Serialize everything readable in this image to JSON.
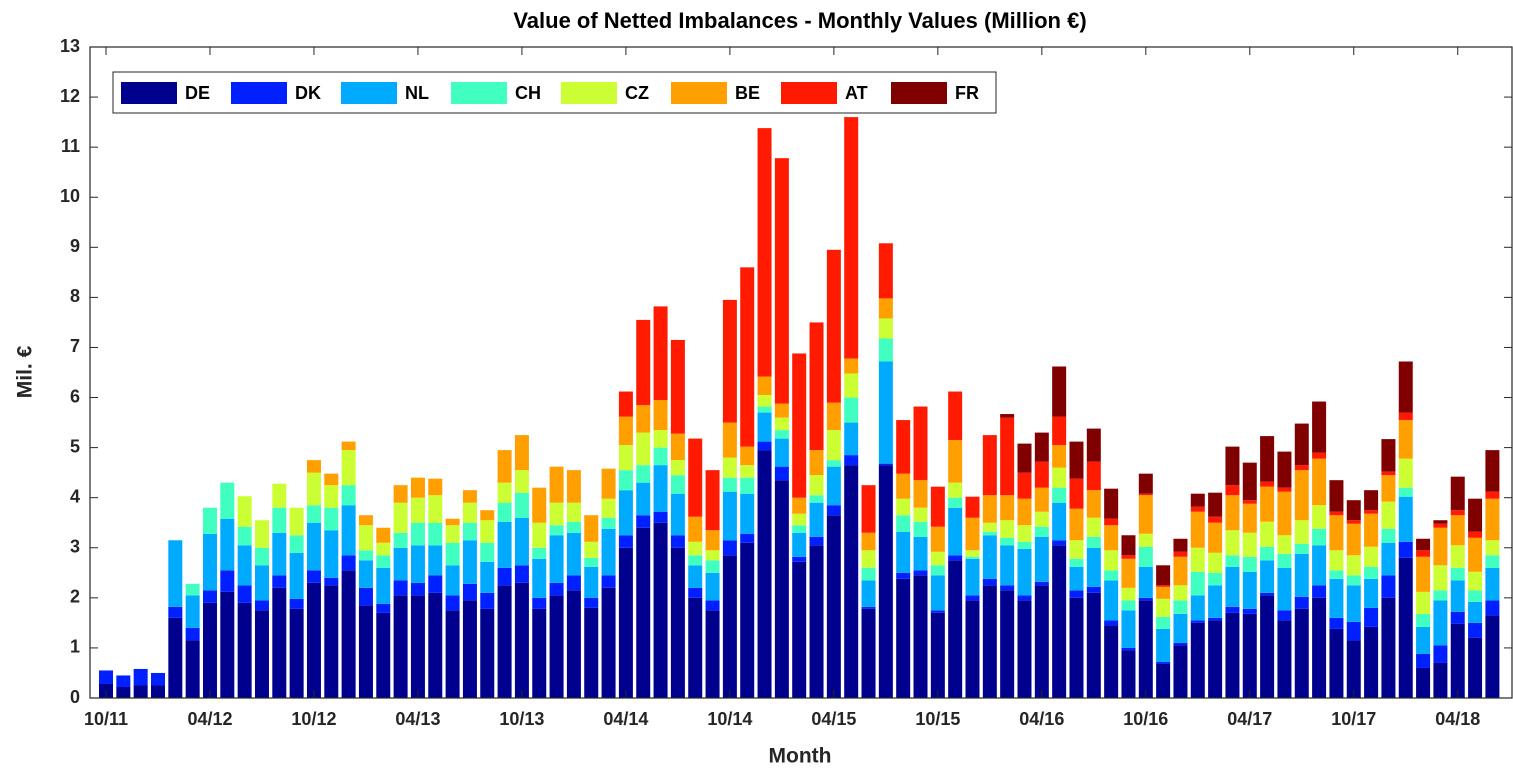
{
  "chart_data": {
    "type": "stacked_bar",
    "title": "Value of Netted Imbalances - Monthly Values (Million €)",
    "x_label": "Month",
    "y_label": "Mil. €",
    "categories": [
      "10/11",
      null,
      null,
      null,
      null,
      null,
      "04/12",
      null,
      null,
      null,
      null,
      null,
      "10/12",
      null,
      null,
      null,
      null,
      null,
      "04/13",
      null,
      null,
      null,
      null,
      null,
      "10/13",
      null,
      null,
      null,
      null,
      null,
      "04/14",
      null,
      null,
      null,
      null,
      null,
      "10/14",
      null,
      null,
      null,
      null,
      null,
      "04/15",
      null,
      null,
      null,
      null,
      null,
      "10/15",
      null,
      null,
      null,
      null,
      null,
      "04/16",
      null,
      null,
      null,
      null,
      null,
      "10/16",
      null,
      null,
      null,
      null,
      null,
      "04/17",
      null,
      null,
      null,
      null,
      null,
      "10/17",
      null,
      null,
      null,
      null,
      null,
      "04/18",
      null,
      null
    ],
    "ylim": [
      0,
      13
    ],
    "yticks": [
      0,
      1,
      2,
      3,
      4,
      5,
      6,
      7,
      8,
      9,
      10,
      11,
      12,
      13
    ],
    "legend": "upper left",
    "series": [
      {
        "name": "DE",
        "color": "#00008f",
        "values": [
          0.28,
          0.22,
          0.25,
          0.25,
          1.6,
          1.15,
          1.9,
          2.12,
          1.9,
          1.75,
          2.2,
          1.78,
          2.3,
          2.25,
          2.55,
          1.85,
          1.7,
          2.05,
          2.05,
          2.1,
          1.75,
          1.95,
          1.78,
          2.25,
          2.3,
          1.78,
          2.05,
          2.15,
          1.8,
          2.2,
          3.0,
          3.4,
          3.5,
          3.0,
          2.0,
          1.75,
          2.85,
          3.1,
          4.95,
          4.35,
          2.72,
          3.05,
          3.65,
          4.65,
          1.78,
          4.65,
          2.38,
          2.45,
          1.7,
          2.75,
          1.95,
          2.25,
          2.15,
          1.95,
          2.25,
          3.05,
          2.0,
          2.1,
          1.45,
          0.95,
          1.95,
          0.68,
          1.05,
          1.5,
          1.55,
          1.7,
          1.68,
          2.05,
          1.55,
          1.78,
          2.0,
          1.38,
          1.15,
          1.42,
          2.0,
          2.8,
          0.6,
          0.7,
          1.48,
          1.2,
          1.65
        ]
      },
      {
        "name": "DK",
        "color": "#0020ff",
        "values": [
          0.27,
          0.23,
          0.33,
          0.25,
          0.22,
          0.25,
          0.25,
          0.43,
          0.35,
          0.2,
          0.25,
          0.2,
          0.25,
          0.15,
          0.3,
          0.35,
          0.18,
          0.3,
          0.25,
          0.35,
          0.3,
          0.33,
          0.32,
          0.35,
          0.35,
          0.22,
          0.25,
          0.3,
          0.2,
          0.25,
          0.25,
          0.25,
          0.22,
          0.25,
          0.2,
          0.2,
          0.3,
          0.18,
          0.17,
          0.27,
          0.1,
          0.17,
          0.2,
          0.2,
          0.04,
          0.03,
          0.12,
          0.1,
          0.05,
          0.1,
          0.1,
          0.13,
          0.1,
          0.1,
          0.07,
          0.1,
          0.15,
          0.12,
          0.1,
          0.05,
          0.05,
          0.04,
          0.05,
          0.05,
          0.05,
          0.12,
          0.1,
          0.05,
          0.2,
          0.24,
          0.25,
          0.22,
          0.37,
          0.38,
          0.45,
          0.32,
          0.28,
          0.35,
          0.24,
          0.3,
          0.3
        ]
      },
      {
        "name": "NL",
        "color": "#00aaff",
        "values": [
          0,
          0,
          0,
          0,
          1.33,
          0.65,
          1.13,
          1.03,
          0.8,
          0.7,
          0.85,
          0.92,
          0.95,
          0.95,
          1.0,
          0.55,
          0.72,
          0.65,
          0.75,
          0.6,
          0.6,
          0.87,
          0.62,
          0.92,
          0.95,
          0.78,
          0.95,
          0.85,
          0.62,
          0.93,
          0.9,
          0.65,
          0.93,
          0.83,
          0.45,
          0.55,
          0.97,
          0.8,
          0.58,
          0.56,
          0.48,
          0.68,
          0.77,
          0.65,
          0.53,
          2.04,
          0.82,
          0.67,
          0.7,
          0.95,
          0.73,
          0.87,
          0.8,
          0.93,
          0.9,
          0.75,
          0.47,
          0.78,
          0.8,
          0.75,
          0.62,
          0.66,
          0.58,
          0.5,
          0.65,
          0.8,
          0.74,
          0.65,
          0.85,
          0.86,
          0.8,
          0.78,
          0.73,
          0.58,
          0.65,
          0.9,
          0.54,
          0.9,
          0.63,
          0.42,
          0.65
        ]
      },
      {
        "name": "CH",
        "color": "#40ffc0",
        "values": [
          0,
          0,
          0,
          0,
          0,
          0.23,
          0.52,
          0.72,
          0.37,
          0.35,
          0.5,
          0.35,
          0.35,
          0.45,
          0.4,
          0.2,
          0.25,
          0.3,
          0.45,
          0.45,
          0.45,
          0.35,
          0.38,
          0.38,
          0.5,
          0.22,
          0.2,
          0.22,
          0.18,
          0.22,
          0.4,
          0.35,
          0.35,
          0.37,
          0.2,
          0.25,
          0.28,
          0.32,
          0.12,
          0.17,
          0.15,
          0.15,
          0.13,
          0.5,
          0.25,
          0.46,
          0.33,
          0.3,
          0.2,
          0.2,
          0.04,
          0.07,
          0.15,
          0.14,
          0.2,
          0.3,
          0.16,
          0.22,
          0.2,
          0.2,
          0.4,
          0.24,
          0.27,
          0.47,
          0.25,
          0.23,
          0.3,
          0.27,
          0.28,
          0.2,
          0.33,
          0.17,
          0.2,
          0.24,
          0.28,
          0.18,
          0.26,
          0.2,
          0.25,
          0.23,
          0.25
        ]
      },
      {
        "name": "CZ",
        "color": "#ccff33",
        "values": [
          0,
          0,
          0,
          0,
          0,
          0,
          0,
          0,
          0.61,
          0.55,
          0.48,
          0.55,
          0.65,
          0.45,
          0.7,
          0.5,
          0.25,
          0.6,
          0.5,
          0.55,
          0.35,
          0.4,
          0.45,
          0.4,
          0.45,
          0.5,
          0.45,
          0.38,
          0.32,
          0.38,
          0.5,
          0.65,
          0.35,
          0.3,
          0.27,
          0.2,
          0.4,
          0.25,
          0.23,
          0.25,
          0.23,
          0.4,
          0.6,
          0.48,
          0.35,
          0.4,
          0.33,
          0.28,
          0.27,
          0.3,
          0.13,
          0.18,
          0.35,
          0.33,
          0.3,
          0.4,
          0.37,
          0.38,
          0.4,
          0.25,
          0.26,
          0.36,
          0.3,
          0.48,
          0.4,
          0.5,
          0.48,
          0.5,
          0.37,
          0.47,
          0.47,
          0.4,
          0.4,
          0.4,
          0.54,
          0.58,
          0.44,
          0.5,
          0.45,
          0.37,
          0.3
        ]
      },
      {
        "name": "BE",
        "color": "#ff9f00",
        "values": [
          0,
          0,
          0,
          0,
          0,
          0,
          0,
          0,
          0,
          0,
          0,
          0,
          0.25,
          0.23,
          0.17,
          0.2,
          0.3,
          0.35,
          0.4,
          0.33,
          0.13,
          0.25,
          0.2,
          0.65,
          0.7,
          0.7,
          0.72,
          0.65,
          0.53,
          0.6,
          0.57,
          0.55,
          0.6,
          0.53,
          0.5,
          0.4,
          0.7,
          0.37,
          0.37,
          0.28,
          0.32,
          0.5,
          0.55,
          0.3,
          0.35,
          0.4,
          0.5,
          0.55,
          0.5,
          0.85,
          0.65,
          0.55,
          0.5,
          0.53,
          0.48,
          0.45,
          0.63,
          0.55,
          0.5,
          0.58,
          0.77,
          0.24,
          0.57,
          0.72,
          0.6,
          0.7,
          0.58,
          0.7,
          0.87,
          1.0,
          0.93,
          0.7,
          0.63,
          0.66,
          0.53,
          0.77,
          0.7,
          0.75,
          0.6,
          0.68,
          0.83
        ]
      },
      {
        "name": "AT",
        "color": "#ff1a00",
        "values": [
          0,
          0,
          0,
          0,
          0,
          0,
          0,
          0,
          0,
          0,
          0,
          0,
          0,
          0,
          0,
          0,
          0,
          0,
          0,
          0,
          0,
          0,
          0,
          0,
          0,
          0,
          0,
          0,
          0,
          0,
          0.5,
          1.7,
          1.87,
          1.87,
          1.56,
          1.2,
          2.45,
          3.58,
          4.96,
          4.9,
          2.88,
          2.55,
          3.05,
          4.82,
          0.95,
          1.1,
          1.07,
          1.47,
          0.8,
          0.97,
          0.42,
          1.2,
          1.55,
          0.52,
          0.52,
          0.57,
          0.6,
          0.57,
          0.13,
          0.07,
          0.03,
          0.03,
          0.1,
          0.1,
          0.12,
          0.2,
          0.07,
          0.1,
          0.08,
          0.1,
          0.12,
          0.07,
          0.07,
          0.07,
          0.07,
          0.15,
          0.13,
          0.08,
          0.1,
          0.12,
          0.14
        ]
      },
      {
        "name": "FR",
        "color": "#800000",
        "values": [
          0,
          0,
          0,
          0,
          0,
          0,
          0,
          0,
          0,
          0,
          0,
          0,
          0,
          0,
          0,
          0,
          0,
          0,
          0,
          0,
          0,
          0,
          0,
          0,
          0,
          0,
          0,
          0,
          0,
          0,
          0,
          0,
          0,
          0,
          0,
          0,
          0,
          0,
          0,
          0,
          0,
          0,
          0,
          0,
          0,
          0,
          0,
          0,
          0,
          0,
          0,
          0,
          0.07,
          0.58,
          0.58,
          1.0,
          0.74,
          0.66,
          0.6,
          0.4,
          0.4,
          0.4,
          0.26,
          0.26,
          0.48,
          0.77,
          0.75,
          0.91,
          0.72,
          0.83,
          1.02,
          0.63,
          0.4,
          0.4,
          0.65,
          1.02,
          0.23,
          0.07,
          0.67,
          0.66,
          0.83
        ]
      }
    ]
  }
}
